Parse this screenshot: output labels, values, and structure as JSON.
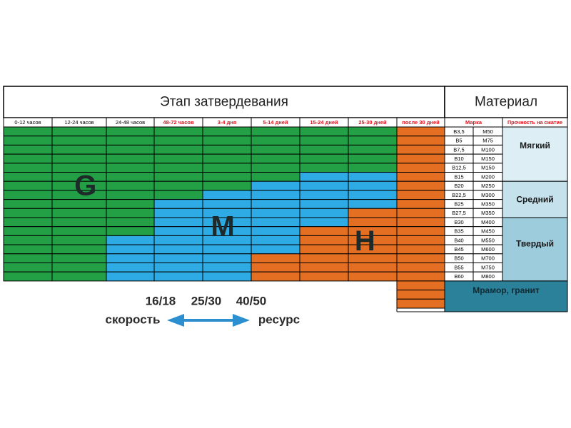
{
  "header": {
    "stage_title": "Этап затвердевания",
    "material_title": "Материал"
  },
  "time_columns": [
    "0-12 часов",
    "12-24 часов",
    "24-48 часов",
    "48-72 часов",
    "3-4 дня",
    "5-14 дней",
    "15-24 дней",
    "25-30 дней",
    "после 30 дней"
  ],
  "time_column_highlight": [
    false,
    false,
    false,
    true,
    true,
    true,
    true,
    true,
    true
  ],
  "material_headers": {
    "grade": "Марка",
    "strength": "Прочность на сжатие"
  },
  "grades": [
    [
      "B3,5",
      "M50"
    ],
    [
      "B5",
      "M75"
    ],
    [
      "B7,5",
      "M100"
    ],
    [
      "B10",
      "M150"
    ],
    [
      "B12,5",
      "M150"
    ],
    [
      "B15",
      "M200"
    ],
    [
      "B20",
      "M250"
    ],
    [
      "B22,5",
      "M300"
    ],
    [
      "B25",
      "M350"
    ],
    [
      "B27,5",
      "M350"
    ],
    [
      "B30",
      "M400"
    ],
    [
      "B35",
      "M450"
    ],
    [
      "B40",
      "M550"
    ],
    [
      "B45",
      "M600"
    ],
    [
      "B50",
      "M700"
    ],
    [
      "B55",
      "M750"
    ],
    [
      "B60",
      "M800"
    ]
  ],
  "strength_groups": [
    {
      "label": "Мягкий",
      "rows": 6,
      "color": "#ddeef5"
    },
    {
      "label": "Средний",
      "rows": 4,
      "color": "#c4e1ec"
    },
    {
      "label": "Твердый",
      "rows": 7,
      "color": "#9dccdd"
    }
  ],
  "extra_material": {
    "label": "Мрамор, гранит",
    "color": "#2a8199"
  },
  "grid_colors": {
    "G": "#23a046",
    "M": "#2eabe4",
    "H": "#e46f22"
  },
  "grid_rows": [
    "GGGGGGGGH",
    "GGGGGGGGH",
    "GGGGGGGGH",
    "GGGGGGGGH",
    "GGGGGGGGH",
    "GGGGGGMMH",
    "GGGGGMMMH",
    "GGGGMMMMH",
    "GGGMMMMMH",
    "GGGMMMMHH",
    "GGGMMMMHH",
    "GGGMMMHHH",
    "GGMMMMHHH",
    "GGMMMMHHH",
    "GGMMMHHHH",
    "GGMMMHHHH",
    "GGMMMHHHH"
  ],
  "extra_rows": [
    "H",
    "H",
    "H"
  ],
  "zone_labels": [
    {
      "text": "G",
      "row": 6.5,
      "col": 1.6
    },
    {
      "text": "M",
      "row": 11,
      "col": 4.4
    },
    {
      "text": "H",
      "row": 12.6,
      "col": 7.3
    }
  ],
  "legend": {
    "values": [
      "16/18",
      "25/30",
      "40/50"
    ],
    "left_label": "скорость",
    "right_label": "ресурс",
    "arrow_color": "#2b8fd0"
  }
}
